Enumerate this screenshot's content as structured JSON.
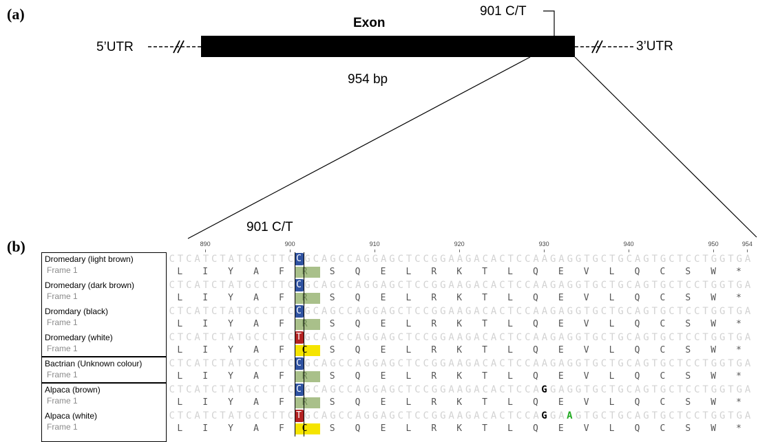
{
  "panel_a": {
    "label": "(a)",
    "utr5": "5’UTR",
    "utr3": "3’UTR",
    "exon_label": "Exon",
    "length_label": "954 bp",
    "snp_label": "901 C/T"
  },
  "panel_b": {
    "label": "(b)",
    "snp_label": "901 C/T",
    "ruler_ticks": [
      "890",
      "900",
      "910",
      "920",
      "930",
      "940",
      "950",
      "954"
    ],
    "frame_label": "Frame 1",
    "reference_dna": "CTCATCTATGCCTTCCGCAGCCAGGAGCTCCGGAAGACACTCCAAGAGGTGCTGCAGTGCTCCTGGTGA",
    "reference_protein": [
      "L",
      "I",
      "Y",
      "A",
      "F",
      "R",
      "S",
      "Q",
      "E",
      "L",
      "R",
      "K",
      "T",
      "L",
      "Q",
      "E",
      "V",
      "L",
      "Q",
      "C",
      "S",
      "W",
      "*"
    ],
    "colors": {
      "C_box": "#2f52a0",
      "T_box": "#b22222",
      "R_bg": "#a9c08a",
      "C_bg": "#f5e400",
      "A_var": "#22aa22"
    },
    "sequences": [
      {
        "name": "Dromedary (light brown)",
        "snp_base": "C",
        "snp_aa": "R",
        "variants": []
      },
      {
        "name": "Dromedary (dark brown)",
        "snp_base": "C",
        "snp_aa": "R",
        "variants": []
      },
      {
        "name": "Dromdary (black)",
        "snp_base": "C",
        "snp_aa": "R",
        "variants": []
      },
      {
        "name": "Dromedary (white)",
        "snp_base": "T",
        "snp_aa": "C",
        "variants": []
      },
      {
        "name": "Bactrian (Unknown colour)",
        "snp_base": "C",
        "snp_aa": "R",
        "variants": []
      },
      {
        "name": "Alpaca (brown)",
        "snp_base": "C",
        "snp_aa": "R",
        "variants": [
          {
            "pos": 930,
            "base": "G"
          }
        ]
      },
      {
        "name": "Alpaca (white)",
        "snp_base": "T",
        "snp_aa": "C",
        "variants": [
          {
            "pos": 930,
            "base": "G"
          },
          {
            "pos": 933,
            "base": "A"
          }
        ]
      }
    ]
  }
}
